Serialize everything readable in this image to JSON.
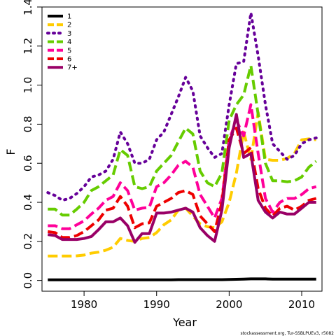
{
  "chart_data": {
    "type": "line",
    "xlabel": "Year",
    "ylabel": "F",
    "xlim": [
      1974.2,
      2012.8
    ],
    "ylim": [
      -0.055,
      1.4
    ],
    "xticks": [
      1980,
      1990,
      2000,
      2010
    ],
    "yticks": [
      0.0,
      0.2,
      0.4,
      0.6,
      0.8,
      1.0,
      1.2,
      1.4
    ],
    "ytick_labels": [
      "0.0",
      "0.2",
      "0.4",
      "0.6",
      "0.8",
      "1.0",
      "1.2",
      "1.4"
    ],
    "grid": false,
    "legend_position": "top-left",
    "credit": "stockassessment.org, Tur-SSBLPUEv3, r5082",
    "x": [
      1975,
      1976,
      1977,
      1978,
      1979,
      1980,
      1981,
      1982,
      1983,
      1984,
      1985,
      1986,
      1987,
      1988,
      1989,
      1990,
      1991,
      1992,
      1993,
      1994,
      1995,
      1996,
      1997,
      1998,
      1999,
      2000,
      2001,
      2002,
      2003,
      2004,
      2005,
      2006,
      2007,
      2008,
      2009,
      2010,
      2011,
      2012
    ],
    "series": [
      {
        "name": "1",
        "color": "#000000",
        "dash": "solid",
        "values": [
          0.003,
          0.003,
          0.003,
          0.003,
          0.003,
          0.003,
          0.003,
          0.003,
          0.003,
          0.003,
          0.003,
          0.003,
          0.003,
          0.003,
          0.003,
          0.003,
          0.003,
          0.003,
          0.004,
          0.004,
          0.004,
          0.004,
          0.004,
          0.004,
          0.004,
          0.005,
          0.006,
          0.007,
          0.008,
          0.008,
          0.008,
          0.007,
          0.007,
          0.007,
          0.007,
          0.007,
          0.007,
          0.007
        ]
      },
      {
        "name": "2",
        "color": "#ffcc00",
        "dash": "dashed",
        "values": [
          0.125,
          0.125,
          0.125,
          0.125,
          0.126,
          0.13,
          0.14,
          0.145,
          0.155,
          0.17,
          0.215,
          0.205,
          0.2,
          0.215,
          0.22,
          0.245,
          0.285,
          0.31,
          0.36,
          0.37,
          0.33,
          0.29,
          0.275,
          0.27,
          0.3,
          0.4,
          0.55,
          0.76,
          0.62,
          0.86,
          0.62,
          0.615,
          0.615,
          0.625,
          0.65,
          0.72,
          0.725,
          0.72
        ]
      },
      {
        "name": "3",
        "color": "#660099",
        "dash": "dotted",
        "values": [
          0.45,
          0.435,
          0.41,
          0.42,
          0.445,
          0.48,
          0.53,
          0.54,
          0.56,
          0.62,
          0.76,
          0.7,
          0.6,
          0.6,
          0.62,
          0.72,
          0.76,
          0.85,
          0.94,
          1.04,
          0.97,
          0.74,
          0.68,
          0.63,
          0.65,
          0.9,
          1.11,
          1.12,
          1.37,
          1.15,
          0.9,
          0.7,
          0.66,
          0.62,
          0.64,
          0.7,
          0.72,
          0.73
        ]
      },
      {
        "name": "4",
        "color": "#66cc00",
        "dash": "dashed",
        "values": [
          0.365,
          0.365,
          0.335,
          0.335,
          0.365,
          0.4,
          0.46,
          0.48,
          0.51,
          0.54,
          0.67,
          0.64,
          0.48,
          0.47,
          0.48,
          0.56,
          0.6,
          0.64,
          0.71,
          0.78,
          0.75,
          0.56,
          0.5,
          0.48,
          0.55,
          0.82,
          0.9,
          0.95,
          1.1,
          0.85,
          0.6,
          0.51,
          0.51,
          0.505,
          0.51,
          0.53,
          0.58,
          0.61
        ]
      },
      {
        "name": "5",
        "color": "#ff0099",
        "dash": "dashed",
        "values": [
          0.28,
          0.28,
          0.265,
          0.265,
          0.285,
          0.305,
          0.34,
          0.37,
          0.41,
          0.43,
          0.5,
          0.46,
          0.36,
          0.37,
          0.375,
          0.48,
          0.5,
          0.54,
          0.59,
          0.61,
          0.58,
          0.44,
          0.38,
          0.32,
          0.42,
          0.72,
          0.82,
          0.74,
          0.9,
          0.65,
          0.42,
          0.35,
          0.4,
          0.42,
          0.42,
          0.44,
          0.47,
          0.48
        ]
      },
      {
        "name": "6",
        "color": "#ee0000",
        "dash": "dashed",
        "values": [
          0.25,
          0.245,
          0.22,
          0.22,
          0.23,
          0.25,
          0.28,
          0.31,
          0.36,
          0.37,
          0.43,
          0.38,
          0.27,
          0.29,
          0.295,
          0.38,
          0.4,
          0.42,
          0.45,
          0.46,
          0.44,
          0.33,
          0.29,
          0.25,
          0.4,
          0.72,
          0.78,
          0.65,
          0.68,
          0.47,
          0.37,
          0.33,
          0.37,
          0.38,
          0.36,
          0.38,
          0.41,
          0.42
        ]
      },
      {
        "name": "7+",
        "color": "#990066",
        "dash": "solid",
        "values": [
          0.235,
          0.23,
          0.21,
          0.21,
          0.21,
          0.215,
          0.225,
          0.26,
          0.3,
          0.3,
          0.32,
          0.28,
          0.195,
          0.24,
          0.24,
          0.345,
          0.345,
          0.35,
          0.36,
          0.37,
          0.35,
          0.27,
          0.23,
          0.2,
          0.36,
          0.68,
          0.85,
          0.63,
          0.65,
          0.41,
          0.35,
          0.32,
          0.35,
          0.34,
          0.34,
          0.37,
          0.4,
          0.4
        ]
      }
    ]
  }
}
